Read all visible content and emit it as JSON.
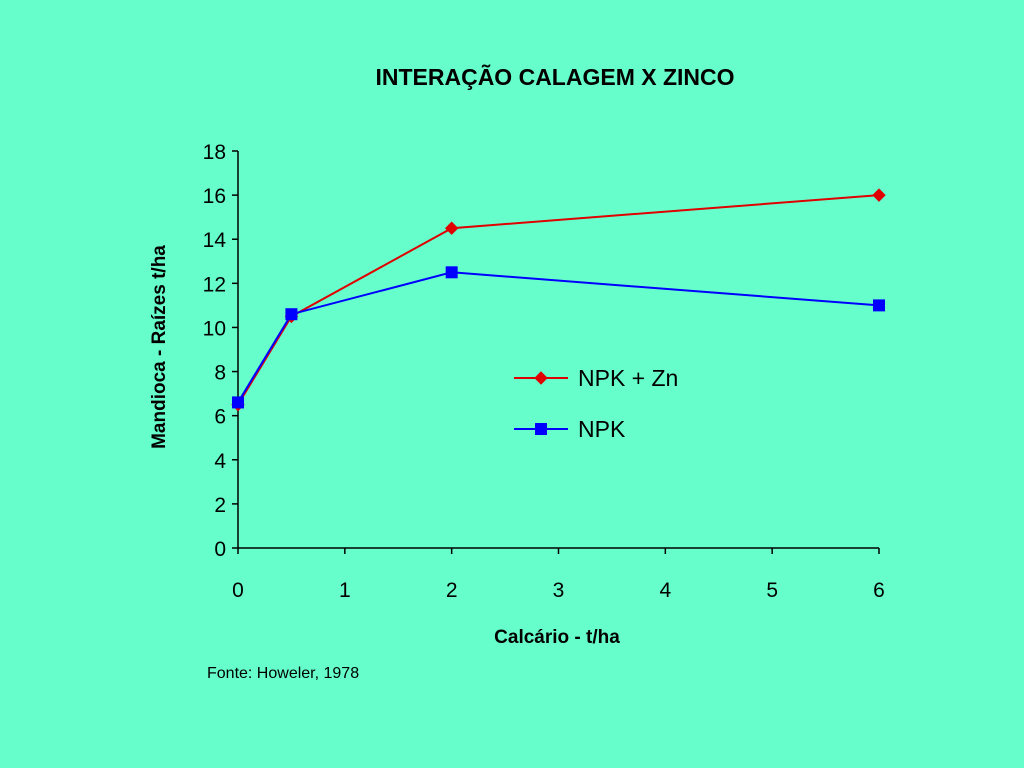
{
  "chart_data": {
    "type": "line",
    "title": "INTERAÇÃO CALAGEM X ZINCO",
    "xlabel": "Calcário - t/ha",
    "ylabel": "Mandioca - Raízes t/ha",
    "xlim": [
      0,
      6
    ],
    "ylim": [
      0,
      18
    ],
    "xticks": [
      "0",
      "1",
      "2",
      "3",
      "4",
      "5",
      "6"
    ],
    "yticks": [
      "0",
      "2",
      "4",
      "6",
      "8",
      "10",
      "12",
      "14",
      "16",
      "18"
    ],
    "grid": false,
    "legend_position": "center-right",
    "series": [
      {
        "name": "NPK + Zn",
        "color": "#e00000",
        "marker": "diamond",
        "x": [
          0,
          0.5,
          2,
          6
        ],
        "y": [
          6.5,
          10.5,
          14.5,
          16.0
        ]
      },
      {
        "name": "NPK",
        "color": "#0000ff",
        "marker": "square",
        "x": [
          0,
          0.5,
          2,
          6
        ],
        "y": [
          6.6,
          10.6,
          12.5,
          11.0
        ]
      }
    ]
  },
  "source": "Fonte: Howeler, 1978"
}
